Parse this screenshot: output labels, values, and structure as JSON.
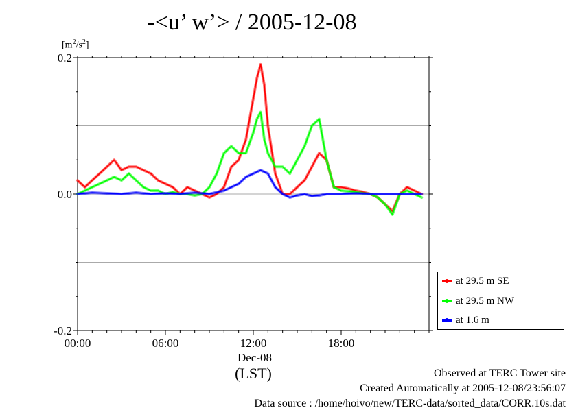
{
  "chart_data": {
    "type": "line",
    "title": "-<u’ w’> / 2005-12-08",
    "y_unit": "[m²/s²]",
    "ylim": [
      -0.2,
      0.2
    ],
    "yticks": [
      {
        "value": 0.2,
        "label": "0.2"
      },
      {
        "value": 0.0,
        "label": "0.0"
      },
      {
        "value": -0.2,
        "label": "-0.2"
      }
    ],
    "ygrid_values": [
      0.1,
      -0.1
    ],
    "xlim": [
      0,
      24
    ],
    "xticks": [
      {
        "value": 0,
        "label": "00:00"
      },
      {
        "value": 6,
        "label": "06:00"
      },
      {
        "value": 12,
        "label": "12:00"
      },
      {
        "value": 18,
        "label": "18:00"
      }
    ],
    "date_label": "Dec-08",
    "tz_label": "(LST)",
    "legend_position": "bottom-right outside",
    "series": [
      {
        "name": "at 29.5 m SE",
        "color": "#ff0000",
        "x": [
          0,
          0.5,
          1,
          1.5,
          2,
          2.5,
          3,
          3.5,
          4,
          4.5,
          5,
          5.5,
          6,
          6.5,
          7,
          7.5,
          8,
          8.5,
          9,
          9.5,
          10,
          10.5,
          11,
          11.5,
          12,
          12.25,
          12.5,
          12.75,
          13,
          13.5,
          14,
          14.5,
          15,
          15.5,
          16,
          16.5,
          17,
          17.5,
          18,
          18.5,
          19,
          19.5,
          20,
          20.5,
          21,
          21.5,
          22,
          22.5,
          23,
          23.5
        ],
        "values": [
          0.02,
          0.01,
          0.02,
          0.03,
          0.04,
          0.05,
          0.035,
          0.04,
          0.04,
          0.035,
          0.03,
          0.02,
          0.015,
          0.01,
          0.0,
          0.01,
          0.005,
          0.0,
          -0.005,
          0.0,
          0.01,
          0.04,
          0.05,
          0.08,
          0.14,
          0.17,
          0.19,
          0.16,
          0.1,
          0.03,
          0.0,
          0.0,
          0.01,
          0.02,
          0.04,
          0.06,
          0.05,
          0.01,
          0.01,
          0.008,
          0.005,
          0.003,
          0.0,
          -0.005,
          -0.015,
          -0.025,
          0.0,
          0.01,
          0.005,
          0.0
        ]
      },
      {
        "name": "at 29.5 m NW",
        "color": "#00ff00",
        "x": [
          0,
          0.5,
          1,
          1.5,
          2,
          2.5,
          3,
          3.5,
          4,
          4.5,
          5,
          5.5,
          6,
          6.5,
          7,
          7.5,
          8,
          8.5,
          9,
          9.5,
          10,
          10.5,
          11,
          11.5,
          12,
          12.25,
          12.5,
          12.75,
          13,
          13.5,
          14,
          14.5,
          15,
          15.5,
          16,
          16.5,
          17,
          17.5,
          18,
          18.5,
          19,
          19.5,
          20,
          20.5,
          21,
          21.5,
          22,
          22.5,
          23,
          23.5
        ],
        "values": [
          0.0,
          0.005,
          0.01,
          0.015,
          0.02,
          0.025,
          0.02,
          0.03,
          0.02,
          0.01,
          0.005,
          0.005,
          0.0,
          0.003,
          0.0,
          0.0,
          -0.002,
          0.0,
          0.01,
          0.03,
          0.06,
          0.07,
          0.06,
          0.06,
          0.09,
          0.11,
          0.12,
          0.08,
          0.06,
          0.04,
          0.04,
          0.03,
          0.05,
          0.07,
          0.1,
          0.11,
          0.05,
          0.01,
          0.005,
          0.004,
          0.003,
          0.001,
          0.0,
          -0.005,
          -0.015,
          -0.03,
          0.0,
          0.005,
          0.0,
          -0.005
        ]
      },
      {
        "name": "at 1.6 m",
        "color": "#0000ff",
        "x": [
          0,
          1,
          2,
          3,
          4,
          5,
          6,
          7,
          8,
          9,
          10,
          10.5,
          11,
          11.5,
          12,
          12.5,
          13,
          13.5,
          14,
          14.5,
          15,
          15.5,
          16,
          16.5,
          17,
          18,
          19,
          20,
          21,
          22,
          23,
          23.5
        ],
        "values": [
          0.0,
          0.002,
          0.001,
          0.0,
          0.002,
          0.0,
          0.001,
          0.0,
          0.002,
          0.0,
          0.005,
          0.01,
          0.015,
          0.025,
          0.03,
          0.035,
          0.03,
          0.01,
          0.0,
          -0.005,
          -0.002,
          0.0,
          -0.003,
          -0.002,
          0.0,
          0.0,
          0.001,
          0.0,
          0.0,
          0.0,
          0.0,
          0.0
        ]
      }
    ]
  },
  "footer": {
    "line1": "Observed at TERC Tower site",
    "line2": "Created Automatically at 2005-12-08/23:56:07",
    "line3": "Data source : /home/hoivo/new/TERC-data/sorted_data/CORR.10s.dat"
  }
}
